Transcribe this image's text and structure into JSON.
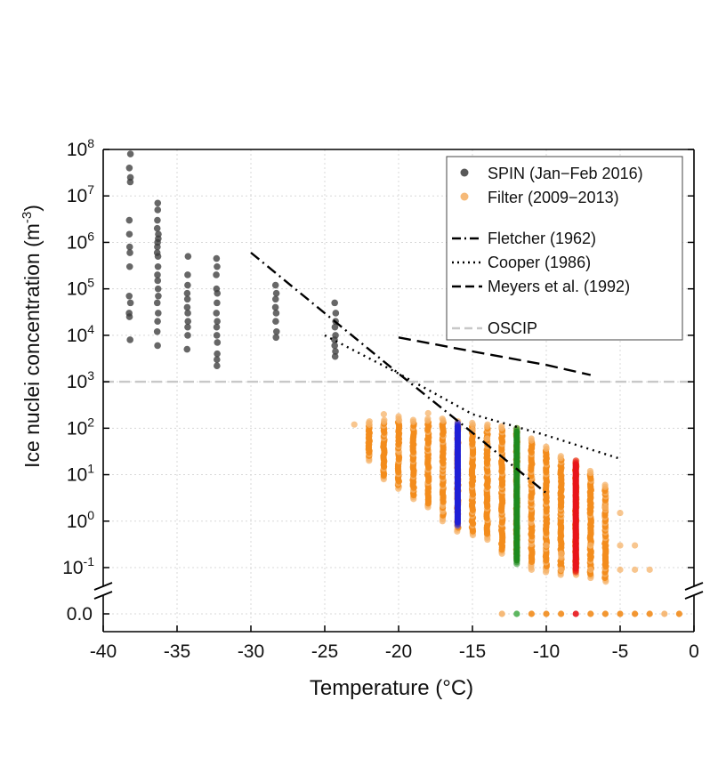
{
  "chart_data": {
    "type": "scatter",
    "xlabel": "Temperature (°C)",
    "ylabel": "Ice nuclei concentration (m",
    "ylabel_sup": "-3",
    "ylabel_close": ")",
    "x_range": [
      -40,
      0
    ],
    "x_ticks": [
      "-40",
      "-35",
      "-30",
      "-25",
      "-20",
      "-15",
      "-10",
      "-5",
      "0"
    ],
    "y_scale": "log with broken axis at 0.0",
    "y_range_log": [
      0.1,
      100000000.0
    ],
    "y_ticks": [
      {
        "base": "10",
        "exp": "8",
        "value": 100000000.0
      },
      {
        "base": "10",
        "exp": "7",
        "value": 10000000.0
      },
      {
        "base": "10",
        "exp": "6",
        "value": 1000000.0
      },
      {
        "base": "10",
        "exp": "5",
        "value": 100000.0
      },
      {
        "base": "10",
        "exp": "4",
        "value": 10000.0
      },
      {
        "base": "10",
        "exp": "3",
        "value": 1000.0
      },
      {
        "base": "10",
        "exp": "2",
        "value": 100.0
      },
      {
        "base": "10",
        "exp": "1",
        "value": 10.0
      },
      {
        "base": "10",
        "exp": "0",
        "value": 1.0
      },
      {
        "base": "10",
        "exp": "-1",
        "value": 0.1
      }
    ],
    "y_zero_label": "0.0",
    "grid": true,
    "legend_position": "top-right",
    "legend": [
      {
        "label": "SPIN (Jan−Feb 2016)",
        "marker": "dot",
        "color": "#3c3c3c"
      },
      {
        "label": "Filter (2009−2013)",
        "marker": "dot",
        "color": "#f5b36a"
      },
      {
        "label": "Fletcher (1962)",
        "marker": "dashdot",
        "color": "#000000"
      },
      {
        "label": "Cooper (1986)",
        "marker": "dotted",
        "color": "#000000"
      },
      {
        "label": "Meyers et al. (1992)",
        "marker": "dashed",
        "color": "#000000"
      },
      {
        "label": "OSCIP",
        "marker": "dashed",
        "color": "#c8c8c8"
      }
    ],
    "series": [
      {
        "name": "SPIN (Jan−Feb 2016)",
        "color": "#3c3c3c",
        "points": [
          [
            -38.2,
            80000000.0
          ],
          [
            -38.2,
            40000000.0
          ],
          [
            -38.2,
            25000000.0
          ],
          [
            -38.2,
            20000000.0
          ],
          [
            -38.2,
            3000000.0
          ],
          [
            -38.2,
            1500000.0
          ],
          [
            -38.2,
            800000.0
          ],
          [
            -38.2,
            600000.0
          ],
          [
            -38.2,
            300000.0
          ],
          [
            -38.2,
            70000.0
          ],
          [
            -38.2,
            50000.0
          ],
          [
            -38.2,
            30000.0
          ],
          [
            -38.2,
            25000.0
          ],
          [
            -38.2,
            8000.0
          ],
          [
            -36.3,
            7000000.0
          ],
          [
            -36.3,
            5000000.0
          ],
          [
            -36.3,
            3000000.0
          ],
          [
            -36.3,
            2000000.0
          ],
          [
            -36.3,
            1500000.0
          ],
          [
            -36.3,
            1200000.0
          ],
          [
            -36.3,
            1000000.0
          ],
          [
            -36.3,
            800000.0
          ],
          [
            -36.3,
            600000.0
          ],
          [
            -36.3,
            500000.0
          ],
          [
            -36.3,
            300000.0
          ],
          [
            -36.3,
            200000.0
          ],
          [
            -36.3,
            150000.0
          ],
          [
            -36.3,
            100000.0
          ],
          [
            -36.3,
            70000.0
          ],
          [
            -36.3,
            50000.0
          ],
          [
            -36.3,
            30000.0
          ],
          [
            -36.3,
            20000.0
          ],
          [
            -36.3,
            12000.0
          ],
          [
            -36.3,
            6000.0
          ],
          [
            -34.3,
            500000.0
          ],
          [
            -34.3,
            200000.0
          ],
          [
            -34.3,
            120000.0
          ],
          [
            -34.3,
            80000.0
          ],
          [
            -34.3,
            60000.0
          ],
          [
            -34.3,
            40000.0
          ],
          [
            -34.3,
            30000.0
          ],
          [
            -34.3,
            20000.0
          ],
          [
            -34.3,
            15000.0
          ],
          [
            -34.3,
            10000.0
          ],
          [
            -34.3,
            5000.0
          ],
          [
            -32.3,
            450000.0
          ],
          [
            -32.3,
            300000.0
          ],
          [
            -32.3,
            200000.0
          ],
          [
            -32.3,
            100000.0
          ],
          [
            -32.3,
            80000.0
          ],
          [
            -32.3,
            50000.0
          ],
          [
            -32.3,
            30000.0
          ],
          [
            -32.3,
            20000.0
          ],
          [
            -32.3,
            15000.0
          ],
          [
            -32.3,
            10000.0
          ],
          [
            -32.3,
            7000.0
          ],
          [
            -32.3,
            4000.0
          ],
          [
            -32.3,
            3000.0
          ],
          [
            -32.3,
            2200.0
          ],
          [
            -28.3,
            120000.0
          ],
          [
            -28.3,
            80000.0
          ],
          [
            -28.3,
            60000.0
          ],
          [
            -28.3,
            40000.0
          ],
          [
            -28.3,
            30000.0
          ],
          [
            -28.3,
            20000.0
          ],
          [
            -28.3,
            12000.0
          ],
          [
            -28.3,
            9000.0
          ],
          [
            -24.3,
            50000.0
          ],
          [
            -24.3,
            30000.0
          ],
          [
            -24.3,
            20000.0
          ],
          [
            -24.3,
            15000.0
          ],
          [
            -24.3,
            10000.0
          ],
          [
            -24.3,
            8000.0
          ],
          [
            -24.3,
            6000.0
          ],
          [
            -24.3,
            4500.0
          ],
          [
            -24.3,
            3500.0
          ]
        ]
      },
      {
        "name": "Filter (2009−2013)",
        "color": "#f28c1c",
        "columns": [
          {
            "t": -22,
            "min": 20,
            "max": 140
          },
          {
            "t": -21,
            "min": 8,
            "max": 150
          },
          {
            "t": -20,
            "min": 5,
            "max": 160
          },
          {
            "t": -19,
            "min": 3,
            "max": 150
          },
          {
            "t": -18,
            "min": 2,
            "max": 160
          },
          {
            "t": -17,
            "min": 1,
            "max": 160
          },
          {
            "t": -16,
            "min": 0.6,
            "max": 140
          },
          {
            "t": -15,
            "min": 0.5,
            "max": 130
          },
          {
            "t": -14,
            "min": 0.4,
            "max": 120
          },
          {
            "t": -13,
            "min": 0.2,
            "max": 110
          },
          {
            "t": -12,
            "min": 0.15,
            "max": 100
          },
          {
            "t": -11,
            "min": 0.1,
            "max": 60
          },
          {
            "t": -10,
            "min": 0.08,
            "max": 40
          },
          {
            "t": -9,
            "min": 0.07,
            "max": 25
          },
          {
            "t": -8,
            "min": 0.07,
            "max": 20
          },
          {
            "t": -7,
            "min": 0.06,
            "max": 12
          },
          {
            "t": -6,
            "min": 0.05,
            "max": 6
          }
        ],
        "highlighted_columns": [
          {
            "t": -16,
            "min": 0.8,
            "max": 130,
            "color": "#1f1fd6"
          },
          {
            "t": -12,
            "min": 0.12,
            "max": 100,
            "color": "#1f8a1f"
          },
          {
            "t": -8,
            "min": 0.08,
            "max": 20,
            "color": "#e8151a"
          }
        ],
        "scattered_light": [
          [
            -23,
            120
          ],
          [
            -21,
            200
          ],
          [
            -20,
            180
          ],
          [
            -18,
            210
          ],
          [
            -15,
            90
          ],
          [
            -14,
            60
          ],
          [
            -10,
            0.3
          ],
          [
            -9,
            0.2
          ],
          [
            -7,
            0.3
          ],
          [
            -6,
            2
          ],
          [
            -5,
            1.5
          ],
          [
            -5,
            0.3
          ],
          [
            -4,
            0.3
          ],
          [
            -5,
            0.09
          ],
          [
            -4,
            0.09
          ],
          [
            -3,
            0.09
          ],
          [
            -11,
            0.09
          ],
          [
            -9,
            0.09
          ],
          [
            -7,
            0.09
          ]
        ],
        "zero_points_t": [
          -13,
          -12,
          -11,
          -10,
          -9,
          -8,
          -7,
          -6,
          -5,
          -4,
          -3,
          -2,
          -1
        ]
      }
    ],
    "parameterizations": [
      {
        "name": "Fletcher (1962)",
        "style": "dashdot",
        "points": [
          [
            -30,
            600000.0
          ],
          [
            -25,
            30000.0
          ],
          [
            -20,
            1500.0
          ],
          [
            -15,
            80.0
          ],
          [
            -10,
            4
          ]
        ]
      },
      {
        "name": "Cooper (1986)",
        "style": "dotted",
        "points": [
          [
            -25,
            10000.0
          ],
          [
            -20,
            1500.0
          ],
          [
            -15,
            200.0
          ],
          [
            -10,
            70.0
          ],
          [
            -5,
            22.0
          ]
        ]
      },
      {
        "name": "Meyers et al. (1992)",
        "style": "dashed",
        "points": [
          [
            -20,
            9000.0
          ],
          [
            -15,
            4500.0
          ],
          [
            -10,
            2300.0
          ],
          [
            -7,
            1400.0
          ]
        ]
      },
      {
        "name": "OSCIP",
        "style": "dashed-gray",
        "y": 1000.0
      }
    ]
  }
}
